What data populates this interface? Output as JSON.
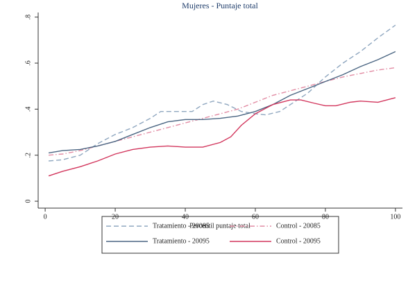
{
  "chart_data": {
    "type": "line",
    "title": "Mujeres - Puntaje total",
    "x_label": "Percentil puntaje total",
    "xlim": [
      -2,
      102
    ],
    "xticks": [
      0,
      20,
      40,
      60,
      80,
      100
    ],
    "ylim": [
      -0.03,
      0.82
    ],
    "yticks": [
      0,
      {
        "value": 0.2,
        "label": ".2"
      },
      {
        "value": 0.4,
        "label": ".4"
      },
      {
        "value": 0.6,
        "label": ".6"
      },
      {
        "value": 0.8,
        "label": ".8"
      }
    ],
    "grid": false,
    "series": [
      {
        "name": "Tratamiento - 20085",
        "color": "#8ea6bf",
        "line_style": "dashed",
        "x": [
          1,
          5,
          10,
          15,
          20,
          25,
          30,
          33,
          38,
          42,
          45,
          48,
          52,
          56,
          60,
          63,
          67,
          70,
          75,
          80,
          85,
          90,
          95,
          100
        ],
        "values": [
          0.175,
          0.18,
          0.2,
          0.25,
          0.29,
          0.32,
          0.36,
          0.39,
          0.39,
          0.39,
          0.42,
          0.435,
          0.42,
          0.39,
          0.38,
          0.375,
          0.39,
          0.42,
          0.47,
          0.54,
          0.6,
          0.65,
          0.71,
          0.765
        ]
      },
      {
        "name": "Control - 20085",
        "color": "#e28ba3",
        "line_style": "dash-dot",
        "x": [
          1,
          5,
          10,
          15,
          20,
          25,
          30,
          35,
          40,
          45,
          50,
          55,
          60,
          65,
          70,
          75,
          80,
          85,
          90,
          95,
          100
        ],
        "values": [
          0.2,
          0.205,
          0.22,
          0.24,
          0.26,
          0.28,
          0.3,
          0.32,
          0.34,
          0.36,
          0.38,
          0.4,
          0.43,
          0.46,
          0.48,
          0.5,
          0.52,
          0.54,
          0.555,
          0.57,
          0.58
        ]
      },
      {
        "name": "Tratamiento - 20095",
        "color": "#4a6582",
        "line_style": "solid",
        "x": [
          1,
          5,
          10,
          15,
          20,
          25,
          30,
          35,
          40,
          45,
          50,
          55,
          60,
          65,
          70,
          75,
          80,
          85,
          90,
          95,
          100
        ],
        "values": [
          0.21,
          0.22,
          0.225,
          0.24,
          0.26,
          0.29,
          0.32,
          0.345,
          0.355,
          0.355,
          0.36,
          0.37,
          0.39,
          0.42,
          0.46,
          0.49,
          0.52,
          0.55,
          0.585,
          0.615,
          0.65
        ]
      },
      {
        "name": "Control - 20095",
        "color": "#d2355c",
        "line_style": "solid",
        "x": [
          1,
          5,
          10,
          15,
          20,
          25,
          30,
          35,
          40,
          45,
          50,
          53,
          56,
          60,
          65,
          70,
          73,
          77,
          80,
          83,
          87,
          90,
          95,
          100
        ],
        "values": [
          0.11,
          0.13,
          0.15,
          0.175,
          0.205,
          0.225,
          0.235,
          0.24,
          0.235,
          0.235,
          0.255,
          0.28,
          0.33,
          0.38,
          0.42,
          0.44,
          0.44,
          0.425,
          0.415,
          0.415,
          0.43,
          0.435,
          0.43,
          0.45
        ]
      }
    ]
  }
}
